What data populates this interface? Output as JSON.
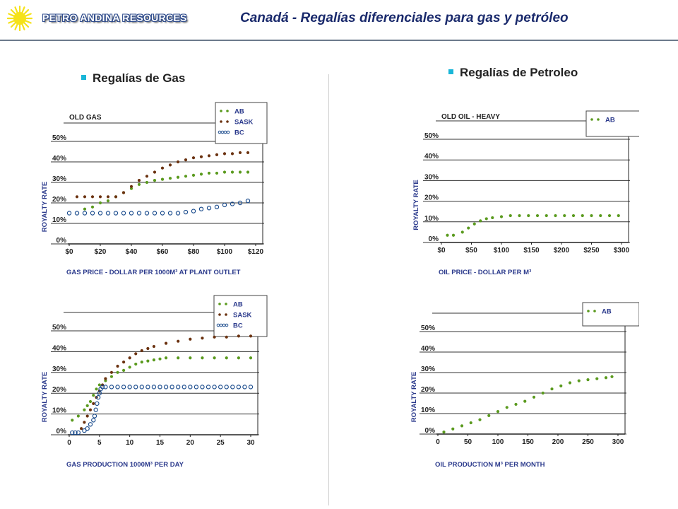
{
  "header": {
    "company": "PETRO ANDINA RESOURCES",
    "title": "Canadá - Regalías diferenciales para gas y petróleo",
    "sun_color": "#f5e21a"
  },
  "sections": {
    "gas": "Regalías de Gas",
    "oil": "Regalías de Petroleo"
  },
  "colors": {
    "AB": "#5a9a1e",
    "SASK": "#6b3210",
    "BC": "#1f4f8f",
    "bullet": "#19b6d8"
  },
  "chart_data": [
    {
      "type": "scatter",
      "title": "OLD GAS",
      "xlabel": "GAS PRICE - DOLLAR PER 1000M³ AT PLANT OUTLET",
      "ylabel": "ROYALTY RATE",
      "xlim": [
        0,
        120
      ],
      "ylim": [
        0,
        50
      ],
      "xticks": [
        "$0",
        "$20",
        "$40",
        "$60",
        "$80",
        "$100",
        "$120"
      ],
      "yticks": [
        "0%",
        "10%",
        "20%",
        "30%",
        "40%",
        "50%"
      ],
      "legend_placement": "top-right",
      "series": [
        {
          "name": "AB",
          "style": "dot",
          "x": [
            10,
            15,
            20,
            25,
            30,
            35,
            40,
            45,
            50,
            55,
            60,
            65,
            70,
            75,
            80,
            85,
            90,
            95,
            100,
            105,
            110,
            115
          ],
          "y": [
            17,
            18,
            20,
            21,
            23,
            25,
            27,
            29,
            30,
            31,
            31.5,
            32,
            32.5,
            33,
            33.5,
            34,
            34.5,
            34.5,
            35,
            35,
            35,
            35
          ]
        },
        {
          "name": "SASK",
          "style": "dot",
          "x": [
            5,
            10,
            15,
            20,
            25,
            30,
            35,
            40,
            45,
            50,
            55,
            60,
            65,
            70,
            75,
            80,
            85,
            90,
            95,
            100,
            105,
            110,
            115
          ],
          "y": [
            23,
            23,
            23,
            23,
            23,
            23,
            25,
            28,
            31,
            33,
            35,
            37,
            38.5,
            40,
            41,
            42,
            42.5,
            43,
            43.5,
            44,
            44,
            44.5,
            44.5
          ]
        },
        {
          "name": "BC",
          "style": "ring",
          "x": [
            0,
            5,
            10,
            15,
            20,
            25,
            30,
            35,
            40,
            45,
            50,
            55,
            60,
            65,
            70,
            75,
            80,
            85,
            90,
            95,
            100,
            105,
            110,
            115
          ],
          "y": [
            15,
            15,
            15,
            15,
            15,
            15,
            15,
            15,
            15,
            15,
            15,
            15,
            15,
            15,
            15,
            15.5,
            16,
            17,
            17.5,
            18,
            19,
            19.5,
            20,
            21
          ]
        }
      ]
    },
    {
      "type": "scatter",
      "title": "OLD OIL - HEAVY",
      "xlabel": "OIL PRICE - DOLLAR PER M³",
      "ylabel": "ROYALTY RATE",
      "xlim": [
        0,
        300
      ],
      "ylim": [
        0,
        50
      ],
      "xticks": [
        "$0",
        "$50",
        "$100",
        "$150",
        "$200",
        "$250",
        "$300"
      ],
      "yticks": [
        "0%",
        "10%",
        "20%",
        "30%",
        "40%",
        "50%"
      ],
      "legend_placement": "top-right",
      "series": [
        {
          "name": "AB",
          "style": "dot",
          "x": [
            10,
            20,
            35,
            45,
            55,
            65,
            75,
            85,
            100,
            115,
            130,
            145,
            160,
            175,
            190,
            205,
            220,
            235,
            250,
            265,
            280,
            295
          ],
          "y": [
            3.5,
            3.5,
            5,
            7,
            9,
            10.5,
            11.5,
            12,
            12.5,
            13,
            13,
            13,
            13,
            13,
            13,
            13,
            13,
            13,
            13,
            13,
            13,
            13
          ]
        }
      ]
    },
    {
      "type": "scatter",
      "title": "",
      "xlabel": "GAS PRODUCTION 1000M³ PER DAY",
      "ylabel": "ROYALTY RATE",
      "xlim": [
        0,
        30
      ],
      "ylim": [
        0,
        50
      ],
      "xticks": [
        "0",
        "5",
        "10",
        "15",
        "20",
        "25",
        "30"
      ],
      "yticks": [
        "0%",
        "10%",
        "20%",
        "30%",
        "40%",
        "50%"
      ],
      "legend_placement": "top-right",
      "series": [
        {
          "name": "AB",
          "style": "dot",
          "x": [
            0.5,
            1.5,
            2.5,
            3,
            3.5,
            4,
            4.5,
            5,
            6,
            7,
            8,
            9,
            10,
            11,
            12,
            13,
            14,
            15,
            16,
            18,
            20,
            22,
            24,
            26,
            28,
            30
          ],
          "y": [
            7,
            9,
            12,
            14,
            16,
            19,
            22,
            24,
            26,
            28,
            30,
            31,
            32.5,
            34,
            35,
            35.5,
            36,
            36.5,
            37,
            37,
            37,
            37,
            37,
            37,
            37,
            37
          ]
        },
        {
          "name": "SASK",
          "style": "dot",
          "x": [
            2,
            2.5,
            3,
            3.5,
            4,
            4.5,
            5,
            5.5,
            6,
            7,
            8,
            9,
            10,
            11,
            12,
            13,
            14,
            16,
            18,
            20,
            22,
            24,
            26,
            28,
            30
          ],
          "y": [
            3,
            6,
            9,
            12,
            15,
            18,
            21,
            24,
            27,
            30,
            33,
            35,
            37,
            39,
            40.5,
            41.5,
            42.5,
            44,
            45,
            46,
            46.5,
            47,
            47,
            47.5,
            47.5
          ]
        },
        {
          "name": "BC",
          "style": "ring",
          "x": [
            0.5,
            1,
            1.5,
            2.5,
            3,
            3.5,
            4,
            4.2,
            4.4,
            4.6,
            4.8,
            5,
            5.2,
            5.5,
            6,
            7,
            8,
            9,
            10,
            11,
            12,
            13,
            14,
            15,
            16,
            17,
            18,
            19,
            20,
            21,
            22,
            23,
            24,
            25,
            26,
            27,
            28,
            29,
            30
          ],
          "y": [
            1,
            1,
            1,
            2,
            3,
            5,
            7,
            9,
            12,
            15,
            18,
            20,
            22,
            23,
            23,
            23,
            23,
            23,
            23,
            23,
            23,
            23,
            23,
            23,
            23,
            23,
            23,
            23,
            23,
            23,
            23,
            23,
            23,
            23,
            23,
            23,
            23,
            23,
            23
          ]
        }
      ]
    },
    {
      "type": "scatter",
      "title": "",
      "xlabel": "OIL PRODUCTION M³ PER MONTH",
      "ylabel": "ROYALTY RATE",
      "xlim": [
        0,
        300
      ],
      "ylim": [
        0,
        50
      ],
      "xticks": [
        "0",
        "50",
        "100",
        "150",
        "200",
        "250",
        "300"
      ],
      "yticks": [
        "0%",
        "10%",
        "20%",
        "30%",
        "40%",
        "50%"
      ],
      "legend_placement": "top-right",
      "series": [
        {
          "name": "AB",
          "style": "dot",
          "x": [
            10,
            25,
            40,
            55,
            70,
            85,
            100,
            115,
            130,
            145,
            160,
            175,
            190,
            205,
            220,
            235,
            250,
            265,
            280,
            290
          ],
          "y": [
            1,
            2.5,
            4,
            5.5,
            7,
            9,
            11,
            13,
            14.5,
            16,
            18,
            20,
            22,
            23.5,
            25,
            26,
            26.5,
            27,
            27.5,
            28
          ]
        }
      ]
    }
  ]
}
